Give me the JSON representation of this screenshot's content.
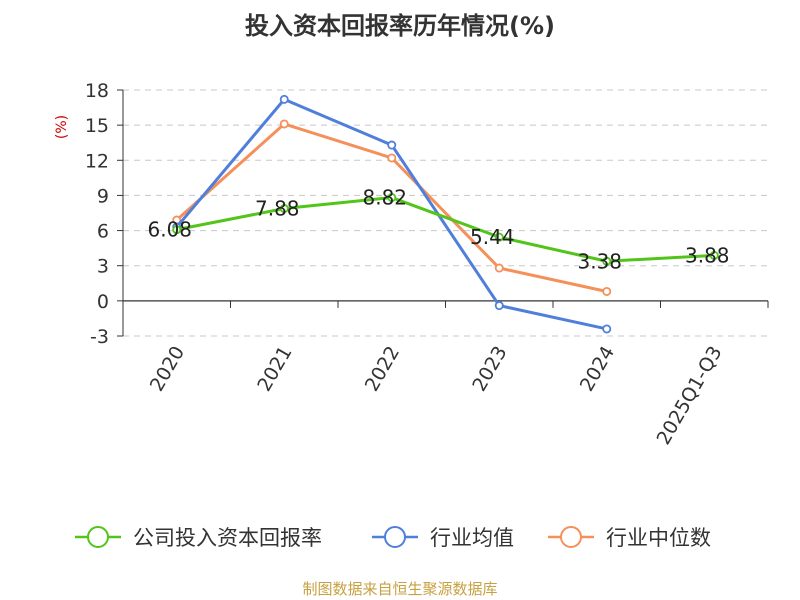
{
  "chart_data": {
    "type": "line",
    "title": "投入资本回报率历年情况(%)",
    "ylabel": "(%)",
    "categories": [
      "2020",
      "2021",
      "2022",
      "2023",
      "2024",
      "2025Q1-Q3"
    ],
    "ylim": [
      -3,
      18
    ],
    "yticks": [
      -3,
      0,
      3,
      6,
      9,
      12,
      15,
      18
    ],
    "grid": true,
    "legend_position": "bottom",
    "series": [
      {
        "name": "公司投入资本回报率",
        "color": "#52c41a",
        "values": [
          6.08,
          7.88,
          8.82,
          5.44,
          3.38,
          3.88
        ],
        "labels": [
          "6.08",
          "7.88",
          "8.82",
          "5.44",
          "3.38",
          "3.88"
        ]
      },
      {
        "name": "行业均值",
        "color": "#4f7fdb",
        "values": [
          6.3,
          17.2,
          13.3,
          -0.4,
          -2.4,
          null
        ]
      },
      {
        "name": "行业中位数",
        "color": "#f5905a",
        "values": [
          6.9,
          15.1,
          12.2,
          2.8,
          0.8,
          null
        ]
      }
    ]
  },
  "source": "制图数据来自恒生聚源数据库"
}
